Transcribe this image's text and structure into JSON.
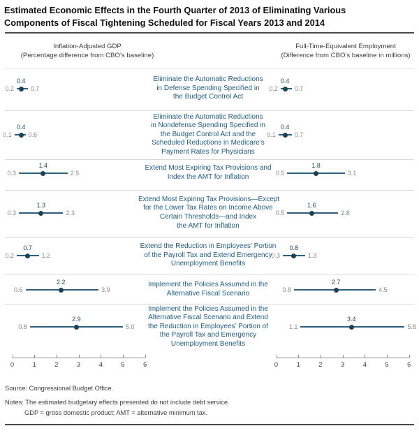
{
  "title_lines": [
    "Estimated Economic Effects in the Fourth Quarter of 2013 of Eliminating Various",
    "Components of Fiscal Tightening Scheduled for Fiscal Years 2013 and 2014"
  ],
  "panels": {
    "left": {
      "title": "Inflation-Adjusted GDP",
      "subtitle": "(Percentage difference from CBO’s baseline)"
    },
    "right": {
      "title": "Full-Time-Equivalent Employment",
      "subtitle": "(Difference from CBO’s baseline in millions)"
    }
  },
  "chart_data": {
    "type": "scatter",
    "variant": "dot-with-range",
    "series_names": [
      "Inflation-Adjusted GDP",
      "Full-Time-Equivalent Employment"
    ],
    "axis": {
      "min": 0,
      "max": 6,
      "ticks": [
        0,
        1,
        2,
        3,
        4,
        5,
        6
      ]
    },
    "rows": [
      {
        "label_lines": [
          "Eliminate the Automatic Reductions",
          "in Defense Spending Specified in",
          "the Budget Control Act"
        ],
        "gdp": {
          "low": 0.2,
          "mid": 0.4,
          "high": 0.7
        },
        "employment": {
          "low": 0.2,
          "mid": 0.4,
          "high": 0.7
        }
      },
      {
        "label_lines": [
          "Eliminate the Automatic Reductions",
          "in Nondefense Spending Specified in",
          "the Budget Control Act and the",
          "Scheduled Reductions in Medicare’s",
          "Payment Rates for Physicians"
        ],
        "gdp": {
          "low": 0.1,
          "mid": 0.4,
          "high": 0.6
        },
        "employment": {
          "low": 0.1,
          "mid": 0.4,
          "high": 0.7
        }
      },
      {
        "label_lines": [
          "Extend Most Expiring Tax Provisions and",
          "Index the AMT for Inflation"
        ],
        "gdp": {
          "low": 0.3,
          "mid": 1.4,
          "high": 2.5
        },
        "employment": {
          "low": 0.5,
          "mid": 1.8,
          "high": 3.1
        }
      },
      {
        "label_lines": [
          "Extend Most Expiring Tax Provisions—Except",
          "for the Lower Tax Rates on Income Above",
          "Certain Thresholds—and Index",
          "the AMT for Inflation"
        ],
        "gdp": {
          "low": 0.3,
          "mid": 1.3,
          "high": 2.3
        },
        "employment": {
          "low": 0.5,
          "mid": 1.6,
          "high": 2.8
        }
      },
      {
        "label_lines": [
          "Extend the Reduction in Employees’ Portion",
          "of the Payroll Tax and Extend Emergency",
          "Unemployment Benefits"
        ],
        "gdp": {
          "low": 0.2,
          "mid": 0.7,
          "high": 1.2
        },
        "employment": {
          "low": 0.3,
          "mid": 0.8,
          "high": 1.3
        }
      },
      {
        "label_lines": [
          "Implement the Policies Assumed in the",
          "Alternative Fiscal Scenario"
        ],
        "gdp": {
          "low": 0.6,
          "mid": 2.2,
          "high": 3.9
        },
        "employment": {
          "low": 0.8,
          "mid": 2.7,
          "high": 4.5
        }
      },
      {
        "label_lines": [
          "Implement the Policies Assumed in the",
          "Alternative Fiscal Scenario and Extend",
          "the Reduction in Employees’ Portion of",
          "the Payroll Tax and Emergency",
          "Unemployment Benefits"
        ],
        "gdp": {
          "low": 0.8,
          "mid": 2.9,
          "high": 5.0
        },
        "employment": {
          "low": 1.1,
          "mid": 3.4,
          "high": 5.8
        }
      }
    ]
  },
  "footer": {
    "source": "Source: Congressional Budget Office.",
    "note1": "Notes: The estimated budgetary effects presented do not include debt service.",
    "note2": "GDP = gross domestic product; AMT = alternative minimum tax."
  },
  "colors": {
    "label_blue": "#1f5c83",
    "range_line": "#2e5f7e",
    "dot": "#1c4255",
    "mid_value": "#1d4962",
    "end_value": "#8a8a8a"
  }
}
